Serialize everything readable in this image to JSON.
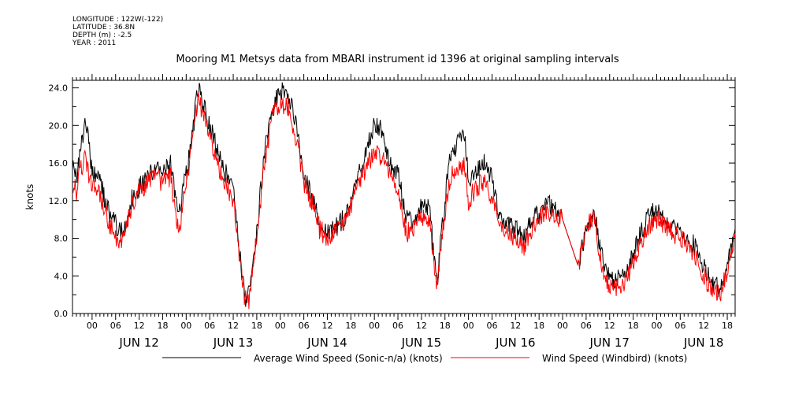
{
  "header": {
    "longitude": "LONGITUDE : 122W(-122)",
    "latitude": "LATITUDE : 36.8N",
    "depth": "DEPTH (m) : -2.5",
    "year": "YEAR : 2011"
  },
  "colors": {
    "series_black": "#000000",
    "series_red": "#ff0000"
  },
  "chart_data": {
    "type": "line",
    "title": "Mooring M1 Metsys data from MBARI instrument id 1396 at original sampling intervals",
    "ylabel": "knots",
    "xlabel": "",
    "ylim": [
      0,
      24.8
    ],
    "xlim_hours_label": "2011-06-11 19:00 to 2011-06-18 20:00",
    "yticks": [
      "0.0",
      "4.0",
      "8.0",
      "12.0",
      "16.0",
      "20.0",
      "24.0"
    ],
    "hour_ticks": [
      "00",
      "06",
      "12",
      "18"
    ],
    "day_labels": [
      "JUN 12",
      "JUN 13",
      "JUN 14",
      "JUN 15",
      "JUN 16",
      "JUN 17",
      "JUN 18"
    ],
    "grid": false,
    "legend": "bottom",
    "series": [
      {
        "name": "Average Wind Speed (Sonic-n/a) (knots)",
        "color": "#000000",
        "x": [
          "2011-06-11T19:00",
          "2011-06-11T20:00",
          "2011-06-11T21:00",
          "2011-06-11T22:00",
          "2011-06-11T23:00",
          "2011-06-12T00:00",
          "2011-06-12T02:00",
          "2011-06-12T04:00",
          "2011-06-12T06:00",
          "2011-06-12T08:00",
          "2011-06-12T10:00",
          "2011-06-12T12:00",
          "2011-06-12T14:00",
          "2011-06-12T16:00",
          "2011-06-12T18:00",
          "2011-06-12T20:00",
          "2011-06-12T22:00",
          "2011-06-13T00:00",
          "2011-06-13T01:00",
          "2011-06-13T03:00",
          "2011-06-13T06:00",
          "2011-06-13T09:00",
          "2011-06-13T12:00",
          "2011-06-13T13:00",
          "2011-06-13T14:00",
          "2011-06-13T15:00",
          "2011-06-13T16:00",
          "2011-06-13T18:00",
          "2011-06-13T20:00",
          "2011-06-13T22:00",
          "2011-06-14T00:00",
          "2011-06-14T02:00",
          "2011-06-14T04:00",
          "2011-06-14T06:00",
          "2011-06-14T08:00",
          "2011-06-14T10:00",
          "2011-06-14T12:00",
          "2011-06-14T14:00",
          "2011-06-14T16:00",
          "2011-06-14T18:00",
          "2011-06-14T20:00",
          "2011-06-14T22:00",
          "2011-06-15T00:00",
          "2011-06-15T02:00",
          "2011-06-15T04:00",
          "2011-06-15T06:00",
          "2011-06-15T08:00",
          "2011-06-15T10:00",
          "2011-06-15T12:00",
          "2011-06-15T14:00",
          "2011-06-15T15:00",
          "2011-06-15T16:00",
          "2011-06-15T17:00",
          "2011-06-15T19:00",
          "2011-06-15T21:00",
          "2011-06-15T23:00",
          "2011-06-16T00:00",
          "2011-06-16T02:00",
          "2011-06-16T04:00",
          "2011-06-16T06:00",
          "2011-06-16T08:00",
          "2011-06-16T10:00",
          "2011-06-16T12:00",
          "2011-06-16T14:00",
          "2011-06-16T16:00",
          "2011-06-16T18:00",
          "2011-06-16T20:00",
          "2011-06-16T22:00",
          "2011-06-17T00:00",
          "2011-06-17T04:00",
          "2011-06-17T06:00",
          "2011-06-17T08:00",
          "2011-06-17T10:00",
          "2011-06-17T12:00",
          "2011-06-17T14:00",
          "2011-06-17T16:00",
          "2011-06-17T18:00",
          "2011-06-17T20:00",
          "2011-06-17T22:00",
          "2011-06-18T00:00",
          "2011-06-18T02:00",
          "2011-06-18T04:00",
          "2011-06-18T06:00",
          "2011-06-18T08:00",
          "2011-06-18T10:00",
          "2011-06-18T12:00",
          "2011-06-18T14:00",
          "2011-06-18T16:00",
          "2011-06-18T18:00",
          "2011-06-18T20:00"
        ],
        "values": [
          16.0,
          14.5,
          17.0,
          20.0,
          19.0,
          15.0,
          14.0,
          11.0,
          9.5,
          8.5,
          12.0,
          13.5,
          14.5,
          15.5,
          15.0,
          16.0,
          10.0,
          15.0,
          17.0,
          24.0,
          20.0,
          16.0,
          13.0,
          9.0,
          5.0,
          1.5,
          2.0,
          9.0,
          17.0,
          22.0,
          23.5,
          23.5,
          20.0,
          15.0,
          12.5,
          9.5,
          8.5,
          9.0,
          10.0,
          12.0,
          15.0,
          17.0,
          20.5,
          19.5,
          16.0,
          15.0,
          10.5,
          9.5,
          11.5,
          11.0,
          7.0,
          3.0,
          8.0,
          16.0,
          18.0,
          19.0,
          14.0,
          15.0,
          16.0,
          14.5,
          10.0,
          9.5,
          9.0,
          8.0,
          10.0,
          10.5,
          12.0,
          11.0,
          10.0,
          5.0,
          9.0,
          11.0,
          6.0,
          3.5,
          3.5,
          4.5,
          6.5,
          8.5,
          10.5,
          11.0,
          10.0,
          9.0,
          8.5,
          8.0,
          7.0,
          5.0,
          3.5,
          2.5,
          5.0,
          9.0
        ]
      },
      {
        "name": "Wind Speed (Windbird) (knots)",
        "color": "#ff0000",
        "x": [
          "2011-06-11T19:00",
          "2011-06-11T20:00",
          "2011-06-11T21:00",
          "2011-06-11T22:00",
          "2011-06-11T23:00",
          "2011-06-12T00:00",
          "2011-06-12T02:00",
          "2011-06-12T04:00",
          "2011-06-12T06:00",
          "2011-06-12T08:00",
          "2011-06-12T10:00",
          "2011-06-12T12:00",
          "2011-06-12T14:00",
          "2011-06-12T16:00",
          "2011-06-12T18:00",
          "2011-06-12T20:00",
          "2011-06-12T22:00",
          "2011-06-13T00:00",
          "2011-06-13T01:00",
          "2011-06-13T03:00",
          "2011-06-13T06:00",
          "2011-06-13T09:00",
          "2011-06-13T12:00",
          "2011-06-13T13:00",
          "2011-06-13T14:00",
          "2011-06-13T15:00",
          "2011-06-13T16:00",
          "2011-06-13T18:00",
          "2011-06-13T20:00",
          "2011-06-13T22:00",
          "2011-06-14T00:00",
          "2011-06-14T02:00",
          "2011-06-14T04:00",
          "2011-06-14T06:00",
          "2011-06-14T08:00",
          "2011-06-14T10:00",
          "2011-06-14T12:00",
          "2011-06-14T14:00",
          "2011-06-14T16:00",
          "2011-06-14T18:00",
          "2011-06-14T20:00",
          "2011-06-14T22:00",
          "2011-06-15T00:00",
          "2011-06-15T02:00",
          "2011-06-15T04:00",
          "2011-06-15T06:00",
          "2011-06-15T08:00",
          "2011-06-15T10:00",
          "2011-06-15T12:00",
          "2011-06-15T14:00",
          "2011-06-15T15:00",
          "2011-06-15T16:00",
          "2011-06-15T17:00",
          "2011-06-15T19:00",
          "2011-06-15T21:00",
          "2011-06-15T23:00",
          "2011-06-16T00:00",
          "2011-06-16T02:00",
          "2011-06-16T04:00",
          "2011-06-16T06:00",
          "2011-06-16T08:00",
          "2011-06-16T10:00",
          "2011-06-16T12:00",
          "2011-06-16T14:00",
          "2011-06-16T16:00",
          "2011-06-16T18:00",
          "2011-06-16T20:00",
          "2011-06-16T22:00",
          "2011-06-17T00:00",
          "2011-06-17T04:00",
          "2011-06-17T06:00",
          "2011-06-17T08:00",
          "2011-06-17T10:00",
          "2011-06-17T12:00",
          "2011-06-17T14:00",
          "2011-06-17T16:00",
          "2011-06-17T18:00",
          "2011-06-17T20:00",
          "2011-06-17T22:00",
          "2011-06-18T00:00",
          "2011-06-18T02:00",
          "2011-06-18T04:00",
          "2011-06-18T06:00",
          "2011-06-18T08:00",
          "2011-06-18T10:00",
          "2011-06-18T12:00",
          "2011-06-18T14:00",
          "2011-06-18T16:00",
          "2011-06-18T18:00",
          "2011-06-18T20:00"
        ],
        "values": [
          14.0,
          13.0,
          15.0,
          16.5,
          15.0,
          13.5,
          12.5,
          10.0,
          8.0,
          7.5,
          11.5,
          13.0,
          14.0,
          14.5,
          14.0,
          14.5,
          8.5,
          14.0,
          16.0,
          23.0,
          19.0,
          14.5,
          12.0,
          8.0,
          4.5,
          1.5,
          1.5,
          8.5,
          16.0,
          21.0,
          22.5,
          22.0,
          18.5,
          14.0,
          12.0,
          9.0,
          8.0,
          8.5,
          9.5,
          11.5,
          14.0,
          15.5,
          17.5,
          16.5,
          14.5,
          13.0,
          8.5,
          9.0,
          10.5,
          10.0,
          6.5,
          2.5,
          7.5,
          14.0,
          15.5,
          16.0,
          12.0,
          13.5,
          14.0,
          12.5,
          9.0,
          8.5,
          8.0,
          7.0,
          9.0,
          10.0,
          11.0,
          10.0,
          10.0,
          5.0,
          9.0,
          10.5,
          5.0,
          2.5,
          3.0,
          3.5,
          5.5,
          7.5,
          9.5,
          10.0,
          9.5,
          8.5,
          8.0,
          7.0,
          6.0,
          4.0,
          2.5,
          2.0,
          4.5,
          8.5
        ]
      }
    ]
  }
}
